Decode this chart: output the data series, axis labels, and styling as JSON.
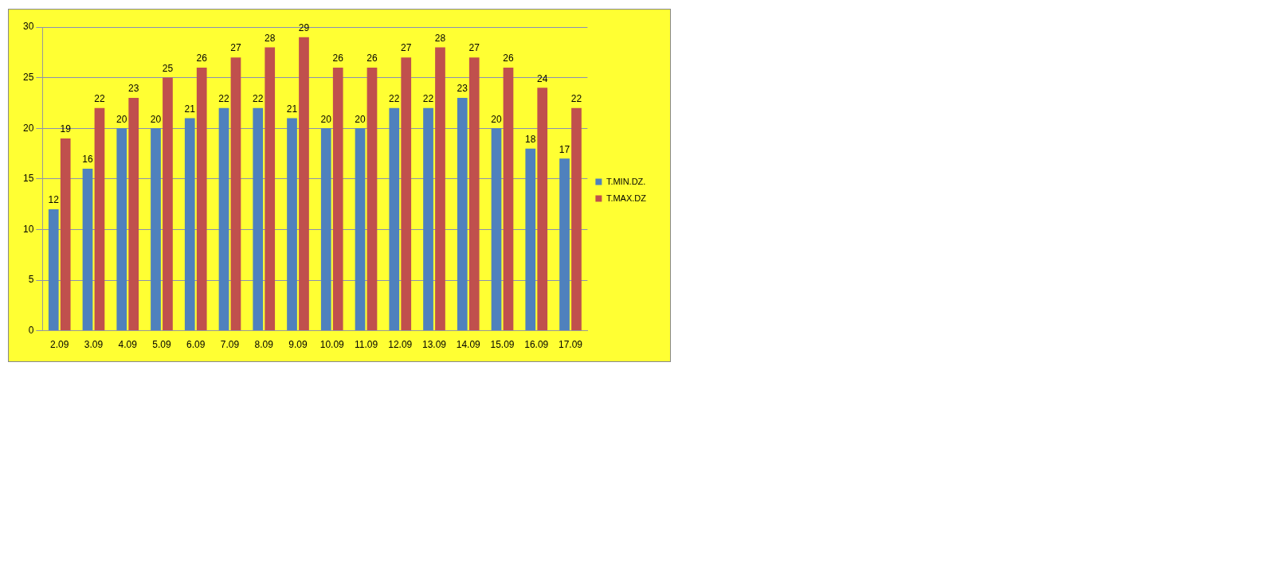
{
  "chart_data": {
    "type": "bar",
    "categories": [
      "2.09",
      "3.09",
      "4.09",
      "5.09",
      "6.09",
      "7.09",
      "8.09",
      "9.09",
      "10.09",
      "11.09",
      "12.09",
      "13.09",
      "14.09",
      "15.09",
      "16.09",
      "17.09"
    ],
    "series": [
      {
        "name": "T.MIN.DZ.",
        "color": "#4f81bd",
        "values": [
          12,
          16,
          20,
          20,
          21,
          22,
          22,
          21,
          20,
          20,
          22,
          22,
          23,
          20,
          18,
          17
        ]
      },
      {
        "name": "T.MAX.DZ",
        "color": "#c0504d",
        "values": [
          19,
          22,
          23,
          25,
          26,
          27,
          28,
          29,
          26,
          26,
          27,
          28,
          27,
          26,
          24,
          22
        ]
      }
    ],
    "ylim": [
      0,
      30
    ],
    "yticks": [
      0,
      5,
      10,
      15,
      20,
      25,
      30
    ],
    "grid": "y",
    "legend": "right",
    "data_labels": true
  }
}
